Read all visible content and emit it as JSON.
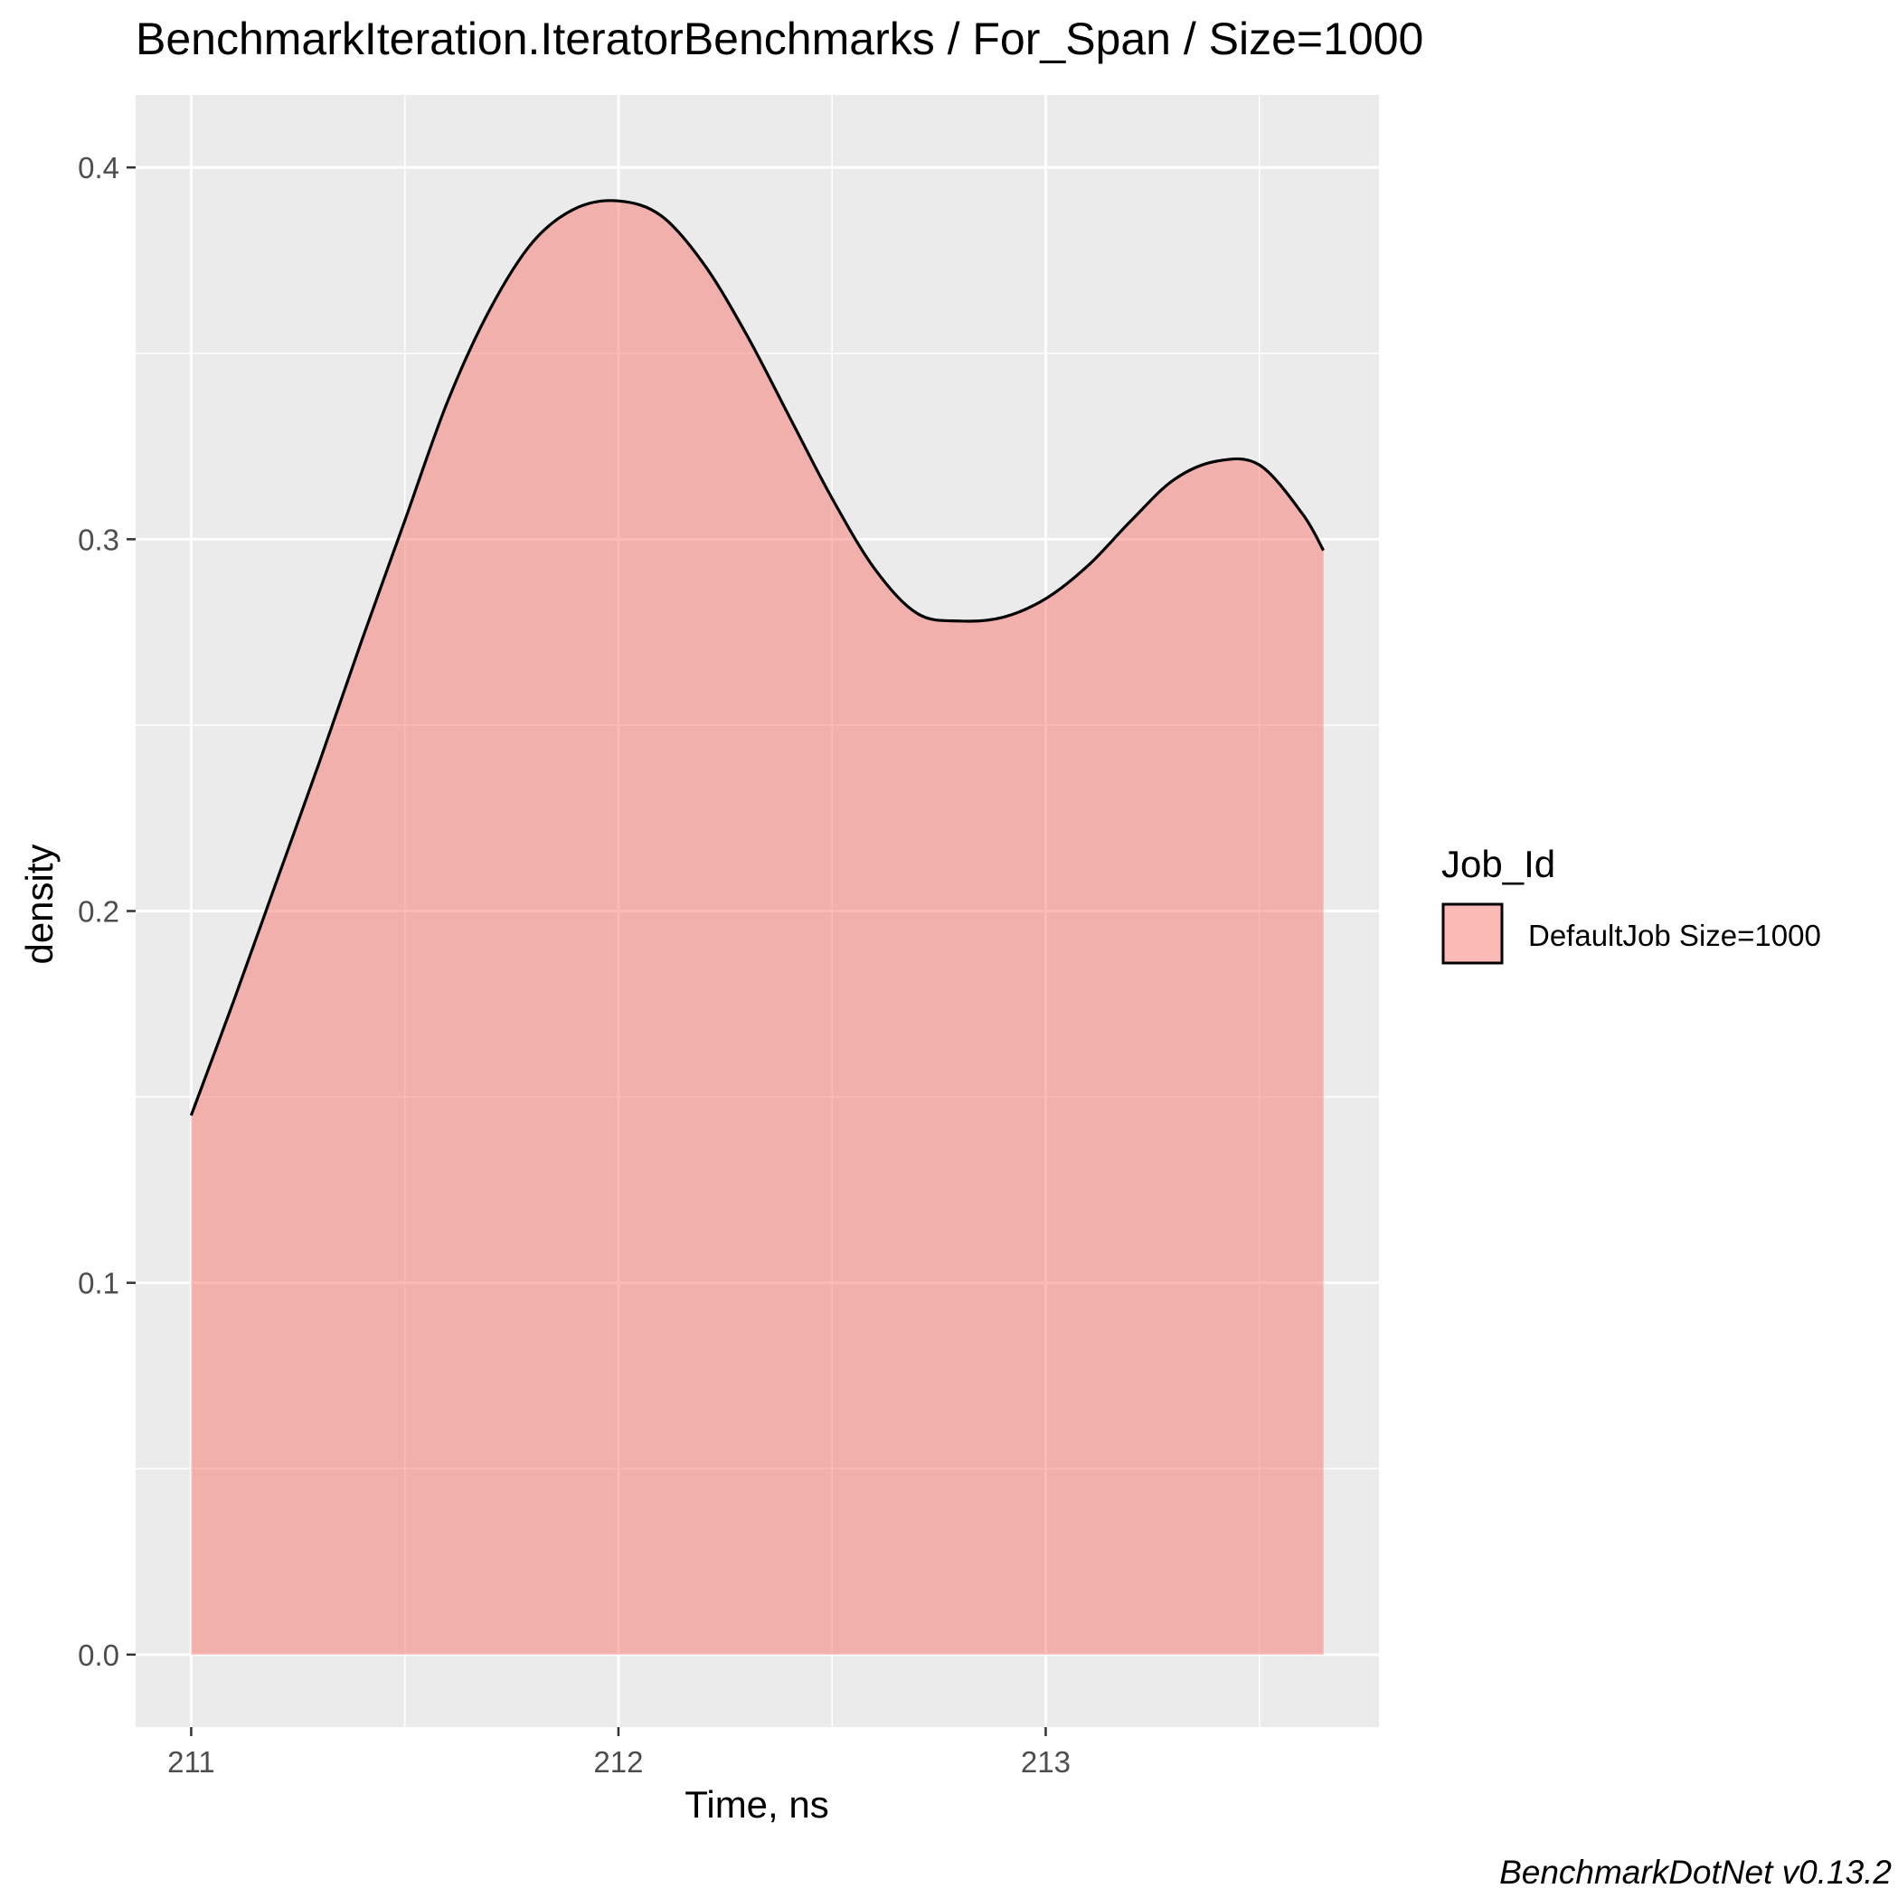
{
  "chart_data": {
    "type": "area",
    "title": "BenchmarkIteration.IteratorBenchmarks / For_Span / Size=1000",
    "xlabel": "Time, ns",
    "ylabel": "density",
    "xlim": [
      210.87,
      213.78
    ],
    "ylim": [
      -0.0195,
      0.4195
    ],
    "x_ticks": [
      211,
      212,
      213
    ],
    "x_tick_labels": [
      "211",
      "212",
      "213"
    ],
    "y_ticks": [
      0.0,
      0.1,
      0.2,
      0.3,
      0.4
    ],
    "y_tick_labels": [
      "0.0",
      "0.1",
      "0.2",
      "0.3",
      "0.4"
    ],
    "grid": true,
    "legend": {
      "title": "Job_Id",
      "position": "right"
    },
    "series": [
      {
        "name": "DefaultJob Size=1000",
        "fill_color": "#F8766D",
        "line_color": "#000000",
        "x": [
          211.0,
          211.1,
          211.2,
          211.3,
          211.4,
          211.5,
          211.6,
          211.7,
          211.8,
          211.9,
          212.0,
          212.1,
          212.2,
          212.3,
          212.4,
          212.5,
          212.6,
          212.7,
          212.8,
          212.9,
          213.0,
          213.1,
          213.2,
          213.3,
          213.4,
          213.5,
          213.6,
          213.65
        ],
        "values": [
          0.145,
          0.176,
          0.208,
          0.24,
          0.273,
          0.305,
          0.337,
          0.362,
          0.38,
          0.389,
          0.391,
          0.387,
          0.374,
          0.355,
          0.333,
          0.311,
          0.292,
          0.28,
          0.278,
          0.279,
          0.284,
          0.293,
          0.305,
          0.316,
          0.321,
          0.32,
          0.307,
          0.297
        ]
      }
    ]
  },
  "caption": "BenchmarkDotNet v0.13.2"
}
